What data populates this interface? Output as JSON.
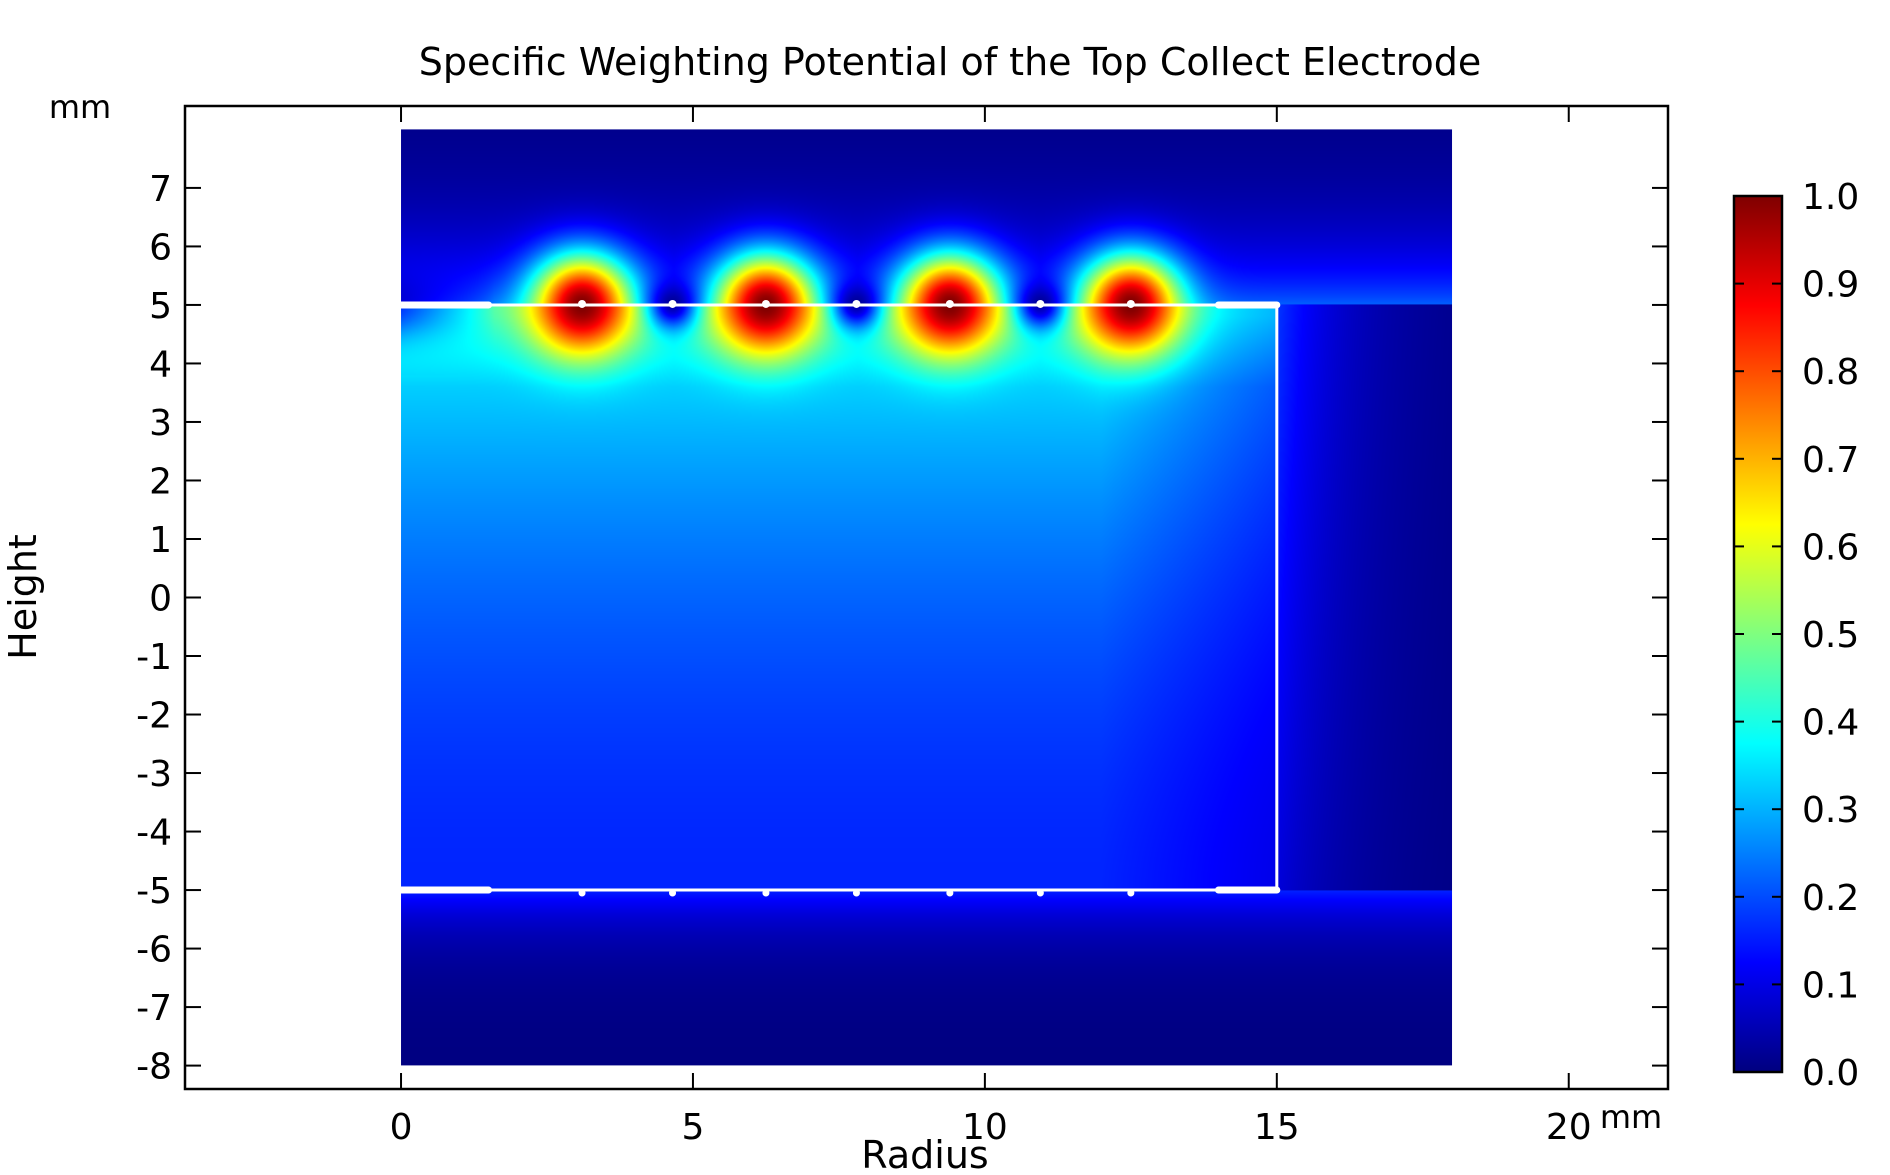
{
  "chart_data": {
    "type": "heatmap",
    "title": "Specific Weighting Potential of the Top Collect Electrode",
    "xlabel": "Radius",
    "ylabel": "Height",
    "x_unit": "mm",
    "y_unit": "mm",
    "xlim": [
      -3.7,
      21.7
    ],
    "ylim": [
      -8.4,
      8.4
    ],
    "x_ticks": [
      0,
      5,
      10,
      15,
      20
    ],
    "y_ticks": [
      7,
      6,
      5,
      4,
      3,
      2,
      1,
      0,
      -1,
      -2,
      -3,
      -4,
      -5,
      -6,
      -7,
      -8
    ],
    "grid": false,
    "colormap": "jet",
    "colorbar": {
      "range": [
        0.0,
        1.0
      ],
      "ticks": [
        "1.0",
        "0.9",
        "0.8",
        "0.7",
        "0.6",
        "0.5",
        "0.4",
        "0.3",
        "0.2",
        "0.1",
        "0.0"
      ]
    },
    "domain": {
      "r": [
        0,
        18
      ],
      "z": [
        -8,
        8
      ]
    },
    "detector_outline": {
      "r": [
        0,
        15
      ],
      "z": [
        -5,
        5
      ]
    },
    "collect_electrodes": [
      {
        "r": 3.1,
        "z": 5,
        "value": 1.0
      },
      {
        "r": 6.25,
        "z": 5,
        "value": 1.0
      },
      {
        "r": 9.4,
        "z": 5,
        "value": 1.0
      },
      {
        "r": 12.5,
        "z": 5,
        "value": 1.0
      }
    ],
    "other_top_electrodes": [
      {
        "r": 4.65,
        "z": 5,
        "value": 0.0
      },
      {
        "r": 7.8,
        "z": 5,
        "value": 0.0
      },
      {
        "r": 10.95,
        "z": 5,
        "value": 0.0
      }
    ],
    "bottom_electrodes": [
      {
        "r": 3.1,
        "z": -5,
        "value": 0.0
      },
      {
        "r": 4.65,
        "z": -5,
        "value": 0.0
      },
      {
        "r": 6.25,
        "z": -5,
        "value": 0.0
      },
      {
        "r": 7.8,
        "z": -5,
        "value": 0.0
      },
      {
        "r": 9.4,
        "z": -5,
        "value": 0.0
      },
      {
        "r": 10.95,
        "z": -5,
        "value": 0.0
      },
      {
        "r": 12.5,
        "z": -5,
        "value": 0.0
      }
    ],
    "edge_contacts": [
      {
        "r": [
          0,
          1.5
        ],
        "z": 5
      },
      {
        "r": [
          14,
          15
        ],
        "z": 5
      },
      {
        "r": [
          0,
          1.5
        ],
        "z": -5
      },
      {
        "r": [
          14,
          15
        ],
        "z": -5
      }
    ]
  },
  "colors": {
    "outline": "#ffffff",
    "axis": "#000000",
    "jet_stops": [
      "#00007f",
      "#0000ff",
      "#007fff",
      "#00ffff",
      "#7fff7f",
      "#ffff00",
      "#ff7f00",
      "#ff0000",
      "#7f0000"
    ]
  }
}
